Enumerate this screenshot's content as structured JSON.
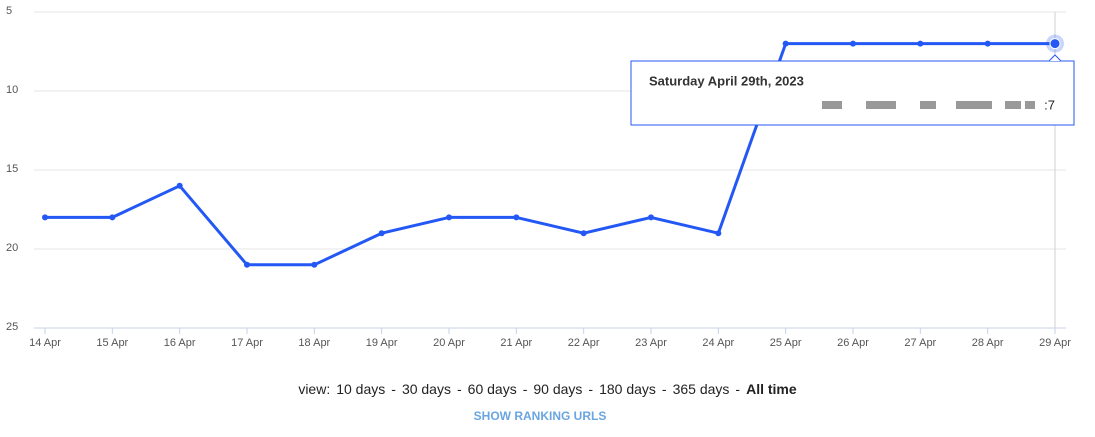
{
  "chart_data": {
    "type": "line",
    "categories": [
      "14 Apr",
      "15 Apr",
      "16 Apr",
      "17 Apr",
      "18 Apr",
      "19 Apr",
      "20 Apr",
      "21 Apr",
      "22 Apr",
      "23 Apr",
      "24 Apr",
      "25 Apr",
      "26 Apr",
      "27 Apr",
      "28 Apr",
      "29 Apr"
    ],
    "series": [
      {
        "color": "#2458f5",
        "values": [
          18,
          18,
          16,
          21,
          21,
          19,
          18,
          18,
          19,
          18,
          19,
          7,
          7,
          7,
          7,
          7
        ]
      }
    ],
    "ylim": [
      25,
      5
    ],
    "yticks": [
      5,
      10,
      15,
      20,
      25
    ],
    "grid": true,
    "tooltip": {
      "title": "Saturday April 29th, 2023",
      "label": ":7"
    }
  },
  "controls": {
    "view_label": "view:",
    "separator": "-",
    "options": [
      "10 days",
      "30 days",
      "60 days",
      "90 days",
      "180 days",
      "365 days",
      "All time"
    ],
    "button": "SHOW RANKING URLS"
  }
}
